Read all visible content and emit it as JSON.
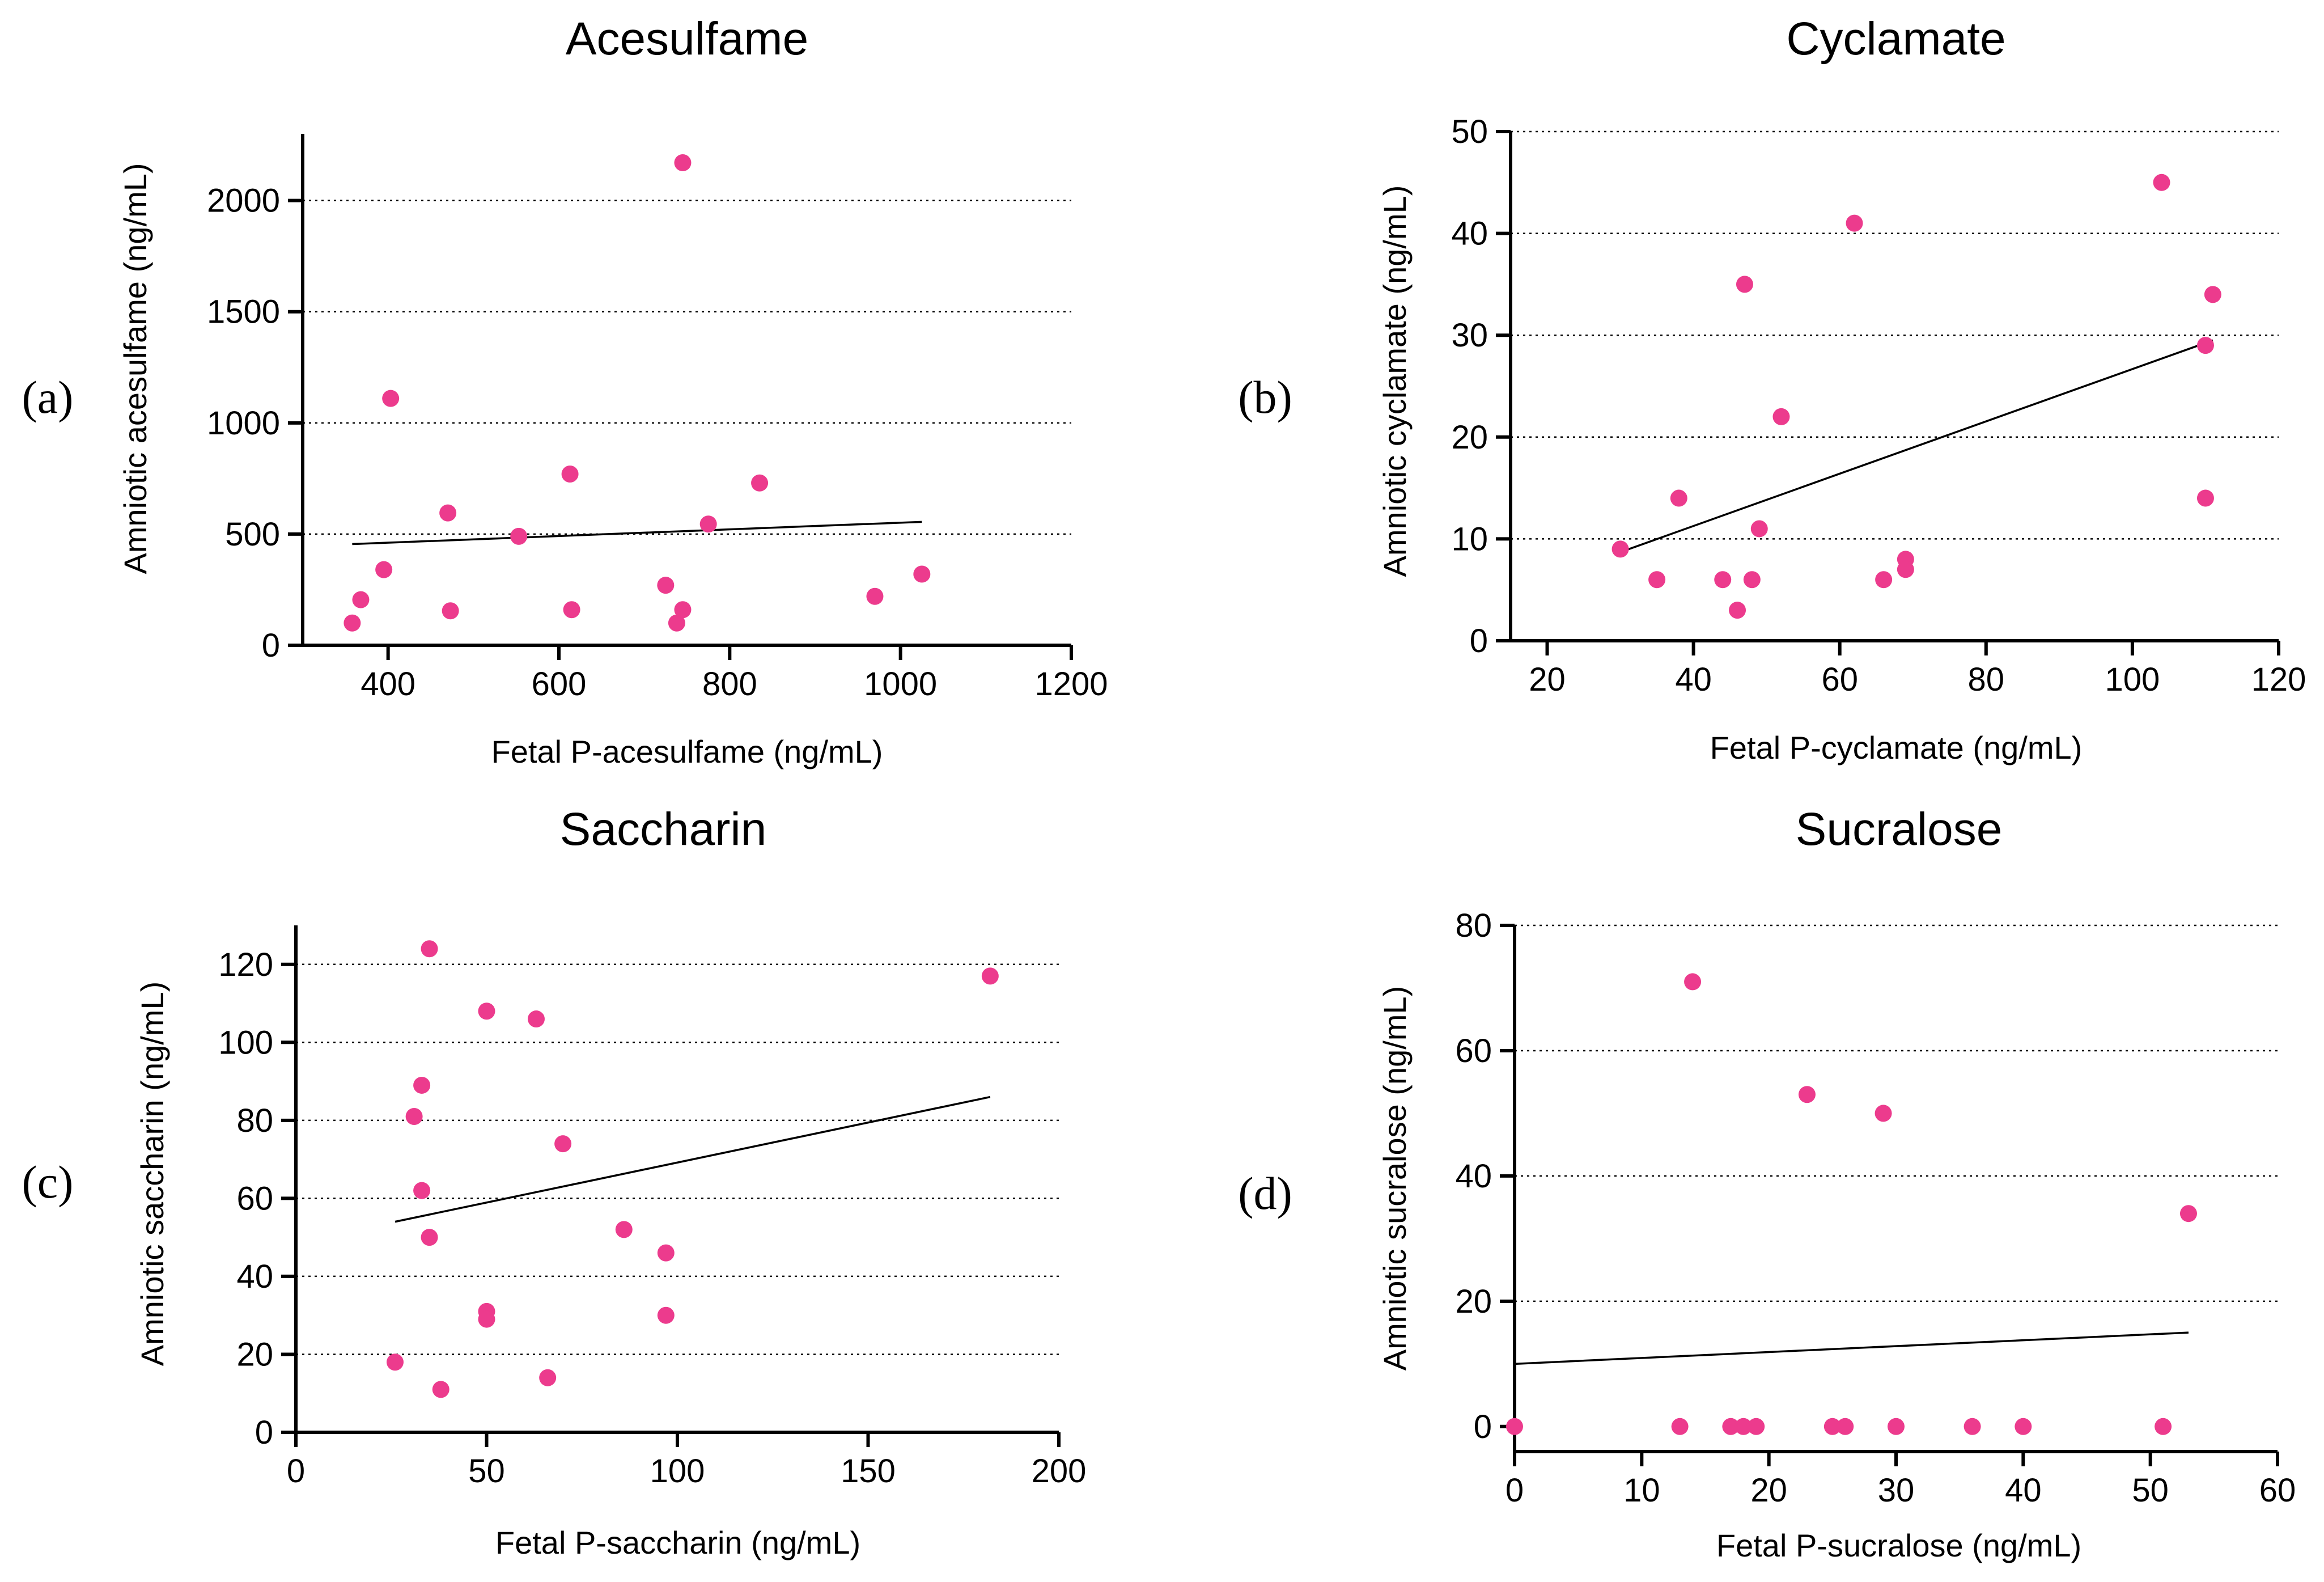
{
  "figure": {
    "point_color": "#ec3b8d",
    "line_color": "#000000"
  },
  "chart_data": [
    {
      "type": "scatter",
      "panel": "(a)",
      "title": "Acesulfame",
      "xlabel": "Fetal P-acesulfame (ng/mL)",
      "ylabel": "Amniotic acesulfame (ng/mL)",
      "xlim": [
        300,
        1200
      ],
      "ylim": [
        0,
        2300
      ],
      "xticks": [
        400,
        600,
        800,
        1000,
        1200
      ],
      "yticks": [
        0,
        500,
        1000,
        1500,
        2000
      ],
      "grid": "horizontal dotted",
      "points": [
        {
          "x": 358,
          "y": 100
        },
        {
          "x": 368,
          "y": 205
        },
        {
          "x": 395,
          "y": 340
        },
        {
          "x": 403,
          "y": 1110
        },
        {
          "x": 470,
          "y": 595
        },
        {
          "x": 473,
          "y": 155
        },
        {
          "x": 553,
          "y": 490
        },
        {
          "x": 613,
          "y": 770
        },
        {
          "x": 615,
          "y": 160
        },
        {
          "x": 725,
          "y": 270
        },
        {
          "x": 738,
          "y": 100
        },
        {
          "x": 745,
          "y": 160
        },
        {
          "x": 745,
          "y": 2170
        },
        {
          "x": 775,
          "y": 545
        },
        {
          "x": 835,
          "y": 730
        },
        {
          "x": 970,
          "y": 220
        },
        {
          "x": 1025,
          "y": 320
        }
      ],
      "fit_line": {
        "x": [
          358,
          1025
        ],
        "y": [
          455,
          555
        ]
      }
    },
    {
      "type": "scatter",
      "panel": "(b)",
      "title": "Cyclamate",
      "xlabel": "Fetal P-cyclamate (ng/mL)",
      "ylabel": "Amniotic cyclamate (ng/mL)",
      "xlim": [
        15,
        120
      ],
      "ylim": [
        0,
        50
      ],
      "xticks": [
        20,
        40,
        60,
        80,
        100,
        120
      ],
      "yticks": [
        0,
        10,
        20,
        30,
        40,
        50
      ],
      "grid": "horizontal dotted",
      "points": [
        {
          "x": 30,
          "y": 9
        },
        {
          "x": 35,
          "y": 6
        },
        {
          "x": 38,
          "y": 14
        },
        {
          "x": 44,
          "y": 6
        },
        {
          "x": 46,
          "y": 3
        },
        {
          "x": 47,
          "y": 35
        },
        {
          "x": 48,
          "y": 6
        },
        {
          "x": 49,
          "y": 11
        },
        {
          "x": 52,
          "y": 22
        },
        {
          "x": 62,
          "y": 41
        },
        {
          "x": 66,
          "y": 6
        },
        {
          "x": 69,
          "y": 8
        },
        {
          "x": 69,
          "y": 7
        },
        {
          "x": 104,
          "y": 45
        },
        {
          "x": 110,
          "y": 29
        },
        {
          "x": 110,
          "y": 14
        },
        {
          "x": 111,
          "y": 34
        }
      ],
      "fit_line": {
        "x": [
          30,
          111
        ],
        "y": [
          8.7,
          29.5
        ]
      }
    },
    {
      "type": "scatter",
      "panel": "(c)",
      "title": "Saccharin",
      "xlabel": "Fetal P-saccharin   (ng/mL)",
      "ylabel": "Amniotic saccharin    (ng/mL)",
      "xlim": [
        0,
        200
      ],
      "ylim": [
        0,
        130
      ],
      "xticks": [
        0,
        50,
        100,
        150,
        200
      ],
      "yticks": [
        0,
        20,
        40,
        60,
        80,
        100,
        120
      ],
      "grid": "horizontal dotted",
      "points": [
        {
          "x": 26,
          "y": 18
        },
        {
          "x": 31,
          "y": 81
        },
        {
          "x": 33,
          "y": 89
        },
        {
          "x": 33,
          "y": 62
        },
        {
          "x": 35,
          "y": 124
        },
        {
          "x": 35,
          "y": 50
        },
        {
          "x": 38,
          "y": 11
        },
        {
          "x": 50,
          "y": 108
        },
        {
          "x": 50,
          "y": 31
        },
        {
          "x": 50,
          "y": 29
        },
        {
          "x": 63,
          "y": 106
        },
        {
          "x": 66,
          "y": 14
        },
        {
          "x": 70,
          "y": 74
        },
        {
          "x": 86,
          "y": 52
        },
        {
          "x": 97,
          "y": 46
        },
        {
          "x": 97,
          "y": 30
        },
        {
          "x": 182,
          "y": 117
        }
      ],
      "fit_line": {
        "x": [
          26,
          182
        ],
        "y": [
          54,
          86
        ]
      }
    },
    {
      "type": "scatter",
      "panel": "(d)",
      "title": "Sucralose",
      "xlabel": "Fetal P-sucralose (ng/mL)",
      "ylabel": "Amniotic sucralose (ng/mL)",
      "xlim": [
        0,
        60
      ],
      "ylim": [
        -4,
        80
      ],
      "xticks": [
        0,
        10,
        20,
        30,
        40,
        50,
        60
      ],
      "yticks": [
        0,
        20,
        40,
        60,
        80
      ],
      "grid": "horizontal dotted",
      "points": [
        {
          "x": 0,
          "y": 0
        },
        {
          "x": 13,
          "y": 0
        },
        {
          "x": 14,
          "y": 71
        },
        {
          "x": 17,
          "y": 0
        },
        {
          "x": 18,
          "y": 0
        },
        {
          "x": 19,
          "y": 0
        },
        {
          "x": 23,
          "y": 53
        },
        {
          "x": 25,
          "y": 0
        },
        {
          "x": 26,
          "y": 0
        },
        {
          "x": 29,
          "y": 50
        },
        {
          "x": 30,
          "y": 0
        },
        {
          "x": 36,
          "y": 0
        },
        {
          "x": 40,
          "y": 0
        },
        {
          "x": 51,
          "y": 0
        },
        {
          "x": 53,
          "y": 34
        }
      ],
      "fit_line": {
        "x": [
          0,
          53
        ],
        "y": [
          10,
          15
        ]
      }
    }
  ]
}
